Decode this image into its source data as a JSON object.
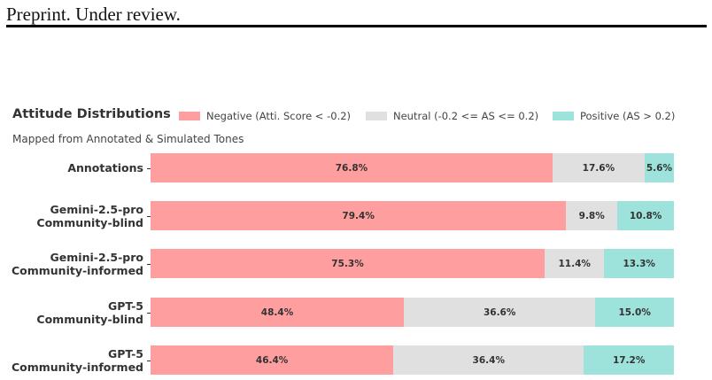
{
  "header": {
    "text": "Preprint. Under review."
  },
  "chart_data": {
    "type": "bar",
    "orientation": "horizontal",
    "stacked": true,
    "title": "Attitude Distributions",
    "subtitle": "Mapped from Annotated & Simulated Tones",
    "categories": [
      [
        "Annotations"
      ],
      [
        "Gemini-2.5-pro",
        "Community-blind"
      ],
      [
        "Gemini-2.5-pro",
        "Community-informed"
      ],
      [
        "GPT-5",
        "Community-blind"
      ],
      [
        "GPT-5",
        "Community-informed"
      ]
    ],
    "series": [
      {
        "name": "Negative (Atti. Score < -0.2)",
        "color": "#ff9e9e",
        "values": [
          76.8,
          79.4,
          75.3,
          48.4,
          46.4
        ]
      },
      {
        "name": "Neutral (-0.2 <= AS <= 0.2)",
        "color": "#e0e0e0",
        "values": [
          17.6,
          9.8,
          11.4,
          36.6,
          36.4
        ]
      },
      {
        "name": "Positive (AS > 0.2)",
        "color": "#9de3dc",
        "values": [
          5.6,
          10.8,
          13.3,
          15.0,
          17.2
        ]
      }
    ],
    "value_suffix": "%",
    "xlim": [
      0,
      100
    ],
    "legend_position": "top",
    "grid": false
  }
}
